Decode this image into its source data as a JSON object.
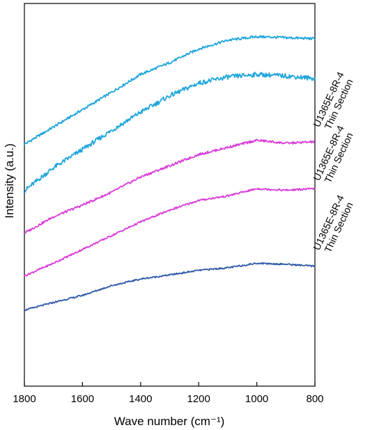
{
  "chart_data": {
    "type": "line",
    "xlabel": "Wave number (cm⁻¹)",
    "ylabel": "Intensity (a.u.)",
    "xlim": [
      1800,
      800
    ],
    "x_reversed": true,
    "y_ticks": "none",
    "x_ticks": [
      1800,
      1600,
      1400,
      1200,
      1000,
      800
    ],
    "series": [
      {
        "color": "#1fa5dc",
        "x": [
          1800,
          1700,
          1600,
          1500,
          1400,
          1300,
          1200,
          1100,
          1000,
          900,
          800
        ],
        "y": [
          5.98,
          6.66,
          7.34,
          8.02,
          8.72,
          9.18,
          9.72,
          10.06,
          10.2,
          10.16,
          10.12
        ]
      },
      {
        "color": "#1fa5dc",
        "x": [
          1800,
          1700,
          1600,
          1500,
          1400,
          1300,
          1200,
          1100,
          1000,
          900,
          800
        ],
        "y": [
          4.16,
          5.06,
          5.78,
          6.52,
          7.24,
          7.88,
          8.38,
          8.62,
          8.72,
          8.66,
          8.56
        ]
      },
      {
        "color": "#d93cd9",
        "x": [
          1800,
          1700,
          1600,
          1500,
          1400,
          1300,
          1200,
          1100,
          1000,
          900,
          800
        ],
        "y": [
          2.5,
          3.14,
          3.6,
          4.1,
          4.7,
          5.14,
          5.58,
          5.86,
          6.14,
          6.02,
          6.08
        ]
      },
      {
        "color": "#d93cd9",
        "x": [
          1800,
          1700,
          1600,
          1500,
          1400,
          1300,
          1200,
          1100,
          1000,
          900,
          800
        ],
        "y": [
          0.82,
          1.32,
          1.86,
          2.4,
          2.94,
          3.4,
          3.78,
          3.96,
          4.24,
          4.18,
          4.24
        ]
      },
      {
        "color": "#2f5aa8",
        "x": [
          1800,
          1700,
          1600,
          1500,
          1400,
          1300,
          1200,
          1100,
          1000,
          900,
          800
        ],
        "y": [
          -0.52,
          -0.22,
          0.06,
          0.44,
          0.7,
          0.86,
          1.04,
          1.14,
          1.32,
          1.28,
          1.2
        ]
      }
    ],
    "annotations": [
      {
        "line1": "U1365E-8R-4",
        "line2": "Thin Section"
      },
      {
        "line1": "U1365E-8R-4",
        "line2": "Thin Section"
      },
      {
        "line1": "U1365E-8R-4",
        "line2": "Thin Section"
      }
    ]
  }
}
